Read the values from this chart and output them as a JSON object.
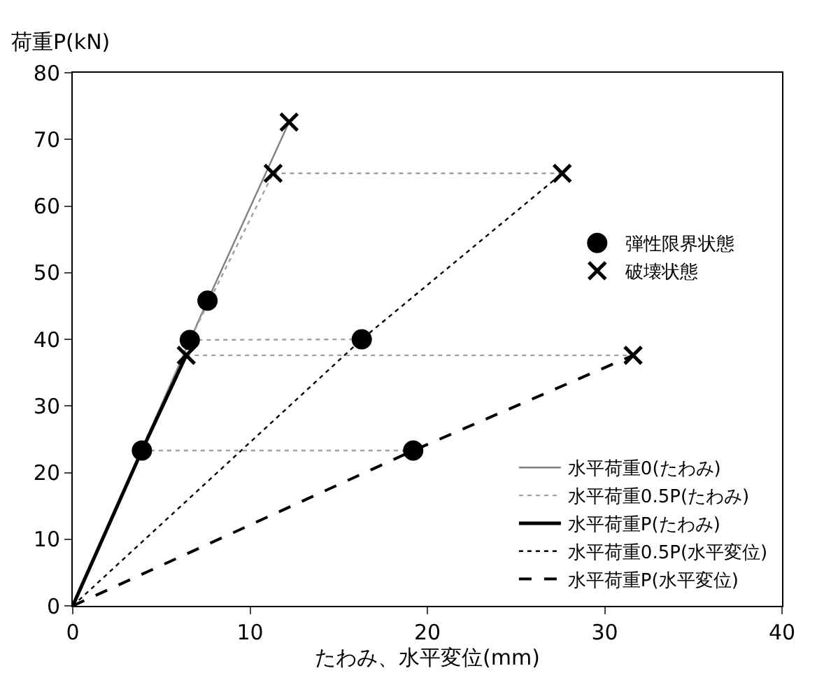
{
  "chart_data": {
    "type": "line",
    "xlabel": "たわみ、水平変位(mm)",
    "ylabel": "荷重P(kN)",
    "xlim": [
      0,
      40
    ],
    "xticks": [
      0,
      10,
      20,
      30,
      40
    ],
    "ylim": [
      0,
      80
    ],
    "yticks": [
      0,
      10,
      20,
      30,
      40,
      50,
      60,
      70,
      80
    ],
    "legend": "bottom right",
    "marker": "none",
    "series": [
      {
        "name": "水平荷重0(たわみ)",
        "color": "#808080",
        "line_style": "solid",
        "x": [
          0,
          7.6,
          12.2
        ],
        "values": [
          0,
          45.8,
          72.6
        ]
      },
      {
        "name": "水平荷重0.5P(たわみ)",
        "color": "#a0a0a0",
        "line_style": "dotted",
        "x": [
          0,
          6.6,
          11.3
        ],
        "values": [
          0,
          39.9,
          64.9
        ]
      },
      {
        "name": "水平荷重P(たわみ)",
        "color": "#000000",
        "line_style": "solid",
        "x": [
          0,
          3.9,
          6.4
        ],
        "values": [
          0,
          23.3,
          37.6
        ]
      },
      {
        "name": "水平荷重0.5P(水平変位)",
        "color": "#000000",
        "line_style": "dotted",
        "x": [
          0,
          16.3,
          27.6
        ],
        "values": [
          0,
          40,
          64.9
        ]
      },
      {
        "name": "水平荷重P(水平変位)",
        "color": "#000000",
        "line_style": "dashed",
        "x": [
          0,
          19.2,
          31.6
        ],
        "values": [
          0,
          23.3,
          37.6
        ]
      },
      {
        "color": "#a0a0a0",
        "line_style": "dotted",
        "x": [
          11.3,
          27.6
        ],
        "values": [
          64.9,
          64.9
        ]
      },
      {
        "color": "#a0a0a0",
        "line_style": "dotted",
        "x": [
          6.6,
          16.3
        ],
        "values": [
          39.9,
          40
        ]
      },
      {
        "color": "#a0a0a0",
        "line_style": "dotted",
        "x": [
          6.4,
          31.6
        ],
        "values": [
          37.6,
          37.6
        ]
      },
      {
        "color": "#a0a0a0",
        "line_style": "dotted",
        "x": [
          3.9,
          19.2
        ],
        "values": [
          23.3,
          23.3
        ]
      },
      {
        "name": "弾性限界状態",
        "type": "scatter",
        "marker": "circle",
        "color": "#000000",
        "x": [
          7.6,
          6.6,
          3.9,
          16.3,
          19.2
        ],
        "values": [
          45.8,
          39.9,
          23.3,
          40,
          23.3
        ]
      },
      {
        "name": "破壊状態",
        "type": "scatter",
        "marker": "cross",
        "color": "#000000",
        "x": [
          12.2,
          11.3,
          6.4,
          27.6,
          31.6
        ],
        "values": [
          72.6,
          64.9,
          37.6,
          64.9,
          37.6
        ]
      }
    ]
  }
}
